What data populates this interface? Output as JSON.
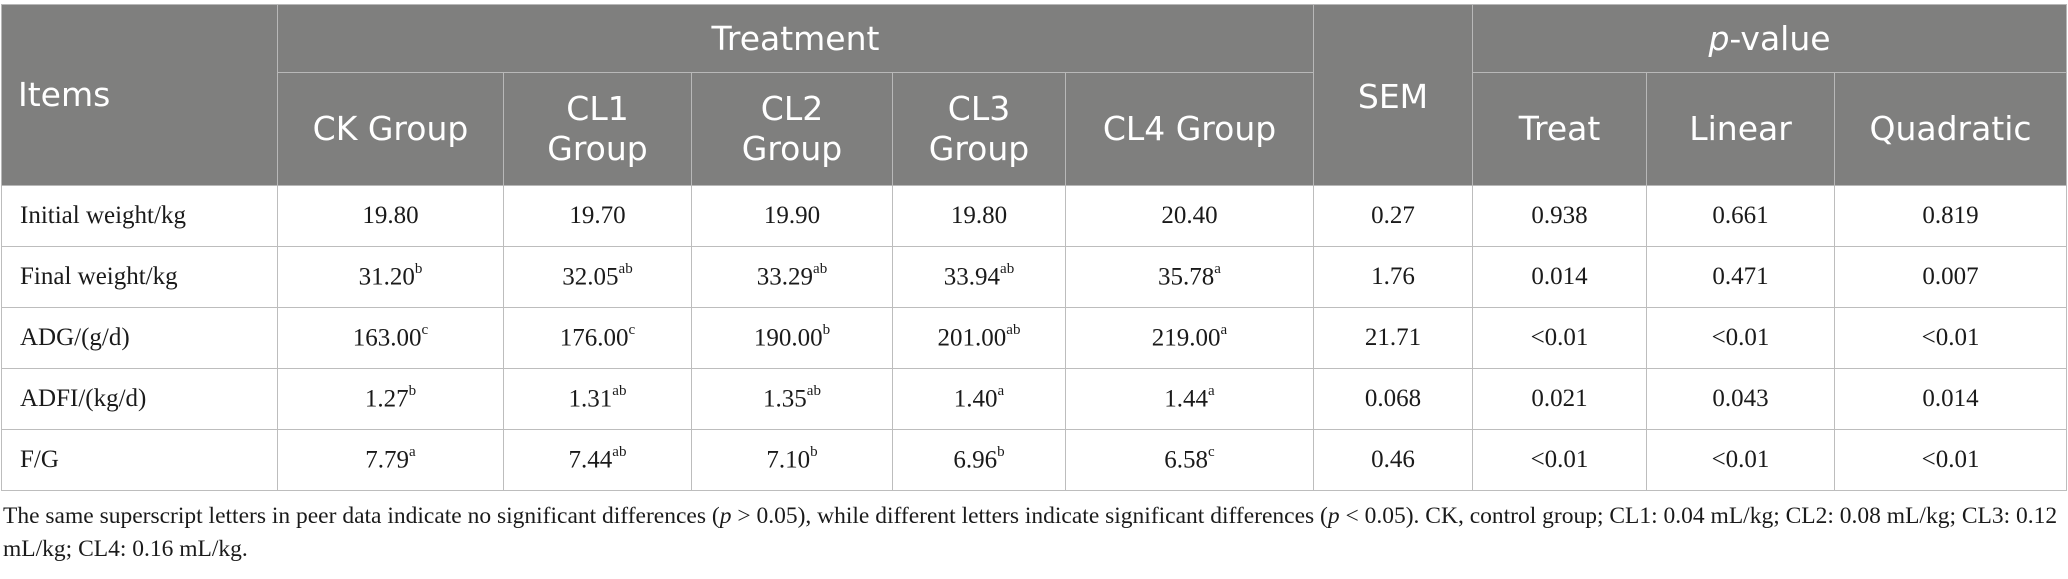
{
  "header": {
    "items": "Items",
    "treatment": "Treatment",
    "sem": "SEM",
    "pvalue_p": "p",
    "pvalue_rest": "-value",
    "groups": [
      {
        "line1": "CK Group",
        "line2": ""
      },
      {
        "line1": "CL1",
        "line2": "Group"
      },
      {
        "line1": "CL2",
        "line2": "Group"
      },
      {
        "line1": "CL3",
        "line2": "Group"
      },
      {
        "line1": "CL4 Group",
        "line2": ""
      }
    ],
    "tests": [
      "Treat",
      "Linear",
      "Quadratic"
    ]
  },
  "rows": [
    {
      "label": "Initial weight/kg",
      "cells": [
        {
          "v": "19.80",
          "s": ""
        },
        {
          "v": "19.70",
          "s": ""
        },
        {
          "v": "19.90",
          "s": ""
        },
        {
          "v": "19.80",
          "s": ""
        },
        {
          "v": "20.40",
          "s": ""
        }
      ],
      "sem": "0.27",
      "treat": "0.938",
      "linear": "0.661",
      "quadratic": "0.819"
    },
    {
      "label": "Final weight/kg",
      "cells": [
        {
          "v": "31.20",
          "s": "b"
        },
        {
          "v": "32.05",
          "s": "ab"
        },
        {
          "v": "33.29",
          "s": "ab"
        },
        {
          "v": "33.94",
          "s": "ab"
        },
        {
          "v": "35.78",
          "s": "a"
        }
      ],
      "sem": "1.76",
      "treat": "0.014",
      "linear": "0.471",
      "quadratic": "0.007"
    },
    {
      "label": "ADG/(g/d)",
      "cells": [
        {
          "v": "163.00",
          "s": "c"
        },
        {
          "v": "176.00",
          "s": "c"
        },
        {
          "v": "190.00",
          "s": "b"
        },
        {
          "v": "201.00",
          "s": "ab"
        },
        {
          "v": "219.00",
          "s": "a"
        }
      ],
      "sem": "21.71",
      "treat": "<0.01",
      "linear": "<0.01",
      "quadratic": "<0.01"
    },
    {
      "label": "ADFI/(kg/d)",
      "cells": [
        {
          "v": "1.27",
          "s": "b"
        },
        {
          "v": "1.31",
          "s": "ab"
        },
        {
          "v": "1.35",
          "s": "ab"
        },
        {
          "v": "1.40",
          "s": "a"
        },
        {
          "v": "1.44",
          "s": "a"
        }
      ],
      "sem": "0.068",
      "treat": "0.021",
      "linear": "0.043",
      "quadratic": "0.014"
    },
    {
      "label": "F/G",
      "cells": [
        {
          "v": "7.79",
          "s": "a"
        },
        {
          "v": "7.44",
          "s": "ab"
        },
        {
          "v": "7.10",
          "s": "b"
        },
        {
          "v": "6.96",
          "s": "b"
        },
        {
          "v": "6.58",
          "s": "c"
        }
      ],
      "sem": "0.46",
      "treat": "<0.01",
      "linear": "<0.01",
      "quadratic": "<0.01"
    }
  ],
  "footnote": {
    "part1": "The same superscript letters in peer data indicate no significant differences (",
    "p1": "p",
    "part2": " > 0.05), while different letters indicate significant differences (",
    "p2": "p",
    "part3": " < 0.05). CK, control group; CL1: 0.04 mL/kg; CL2: 0.08 mL/kg; CL3: 0.12 mL/kg; CL4: 0.16 mL/kg."
  },
  "colors": {
    "header_bg": "#7f7f7e",
    "header_text": "#ffffff",
    "border": "#bdbdbd"
  }
}
